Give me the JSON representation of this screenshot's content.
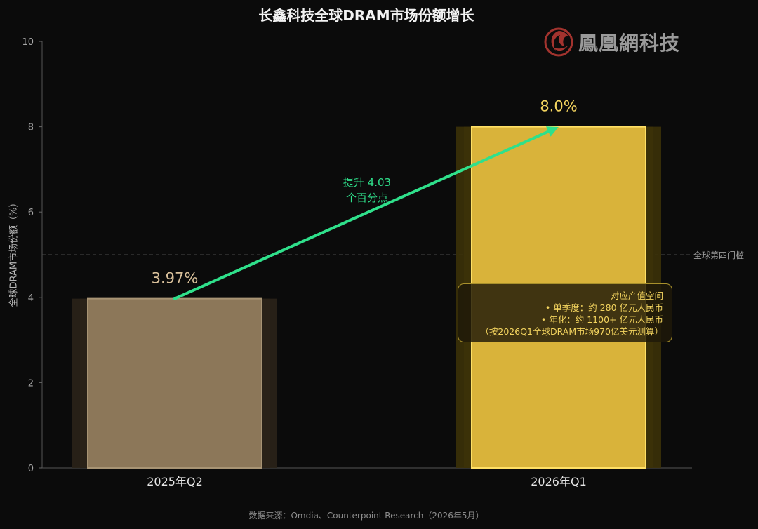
{
  "chart_data": {
    "type": "bar",
    "title": "长鑫科技全球DRAM市场份额增长",
    "ylabel": "全球DRAM市场份额（%）",
    "xlabel": "",
    "ylim": [
      0,
      10
    ],
    "yticks": [
      "0",
      "2",
      "4",
      "6",
      "8",
      "10"
    ],
    "categories": [
      "2025年Q2",
      "2026年Q1"
    ],
    "values": [
      3.97,
      8.0
    ],
    "value_labels": [
      "3.97%",
      "8.0%"
    ],
    "colors": [
      "#8c7759",
      "#d9b33a"
    ],
    "reference_line": {
      "value": 5,
      "label": "全球第四门槛"
    },
    "arrow": {
      "from": 3.97,
      "to": 8.0,
      "label_line1": "提升 4.03",
      "label_line2": "个百分点",
      "color": "#2fe08b"
    },
    "annotation": {
      "title": "对应产值空间",
      "line1": "• 单季度：约 280 亿元人民币",
      "line2": "• 年化：约 1100+ 亿元人民币",
      "line3": "（按2026Q1全球DRAM市场970亿美元测算）"
    },
    "source": "数据来源：Omdia、Counterpoint Research（2026年5月）"
  },
  "logo": {
    "text": "鳳凰網科技"
  }
}
